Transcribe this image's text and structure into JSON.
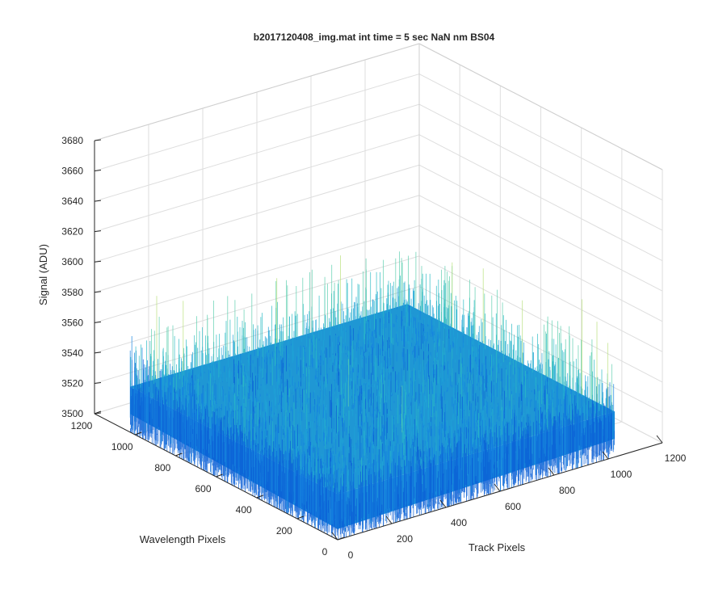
{
  "chart_data": {
    "type": "surface",
    "title": "b2017120408_img.mat int time = 5 sec  NaN nm BS04",
    "xlabel": "Track Pixels",
    "ylabel": "Wavelength Pixels",
    "zlabel": "Signal (ADU)",
    "xlim": [
      0,
      1200
    ],
    "ylim": [
      0,
      1200
    ],
    "zlim": [
      3500,
      3680
    ],
    "x_ticks": [
      "0",
      "200",
      "400",
      "600",
      "800",
      "1000",
      "1200"
    ],
    "y_ticks": [
      "0",
      "200",
      "400",
      "600",
      "800",
      "1000",
      "1200"
    ],
    "z_ticks": [
      "3500",
      "3520",
      "3540",
      "3560",
      "3580",
      "3600",
      "3620",
      "3640",
      "3660",
      "3680"
    ],
    "surface": {
      "x_range": [
        0,
        1024
      ],
      "y_range": [
        0,
        1024
      ],
      "mean_signal": 3530,
      "noise_range": [
        3500,
        3630
      ]
    },
    "colormap": [
      "#0b5fd6",
      "#1583df",
      "#1fa3d6",
      "#2bbbc4",
      "#5ccfae",
      "#b9e07a"
    ],
    "grid": true
  }
}
